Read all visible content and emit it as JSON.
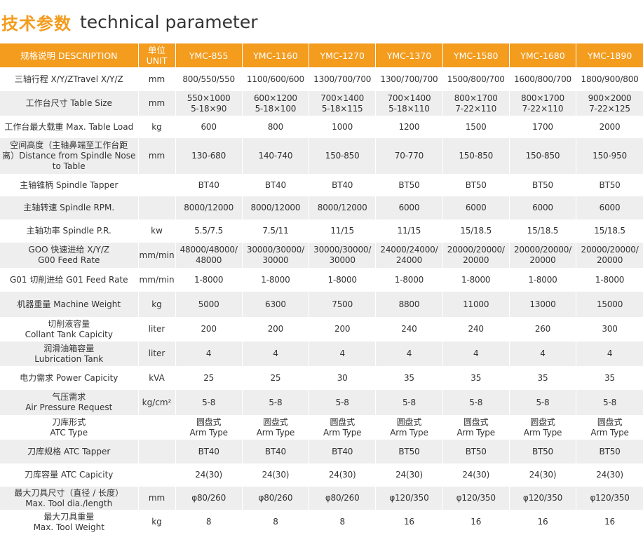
{
  "title": {
    "zh": "技术参数",
    "en": "technical parameter"
  },
  "header": {
    "description": "规格说明 DESCRIPTION",
    "unit": "单位\nUNIT",
    "models": [
      "YMC-855",
      "YMC-1160",
      "YMC-1270",
      "YMC-1370",
      "YMC-1580",
      "YMC-1680",
      "YMC-1890"
    ]
  },
  "rows": [
    {
      "label": "三轴行程 X/Y/ZTravel X/Y/Z",
      "unit": "mm",
      "values": [
        "800/550/550",
        "1100/600/600",
        "1300/700/700",
        "1300/700/700",
        "1500/800/700",
        "1600/800/700",
        "1800/900/800"
      ]
    },
    {
      "label": "工作台尺寸 Table Size",
      "unit": "mm",
      "values": [
        "550×1000\n5-18×90",
        "600×1200\n5-18×100",
        "700×1400\n5-18×115",
        "700×1400\n5-18×110",
        "800×1700\n7-22×110",
        "800×1700\n7-22×110",
        "900×2000\n7-22×125"
      ]
    },
    {
      "label": "工作台最大载重 Max. Table Load",
      "unit": "kg",
      "values": [
        "600",
        "800",
        "1000",
        "1200",
        "1500",
        "1700",
        "2000"
      ]
    },
    {
      "label": "空间高度（主轴鼻端至工作台距\n离）Distance from Spindle Nose\nto Table",
      "unit": "mm",
      "values": [
        "130-680",
        "140-740",
        "150-850",
        "70-770",
        "150-850",
        "150-850",
        "150-950"
      ]
    },
    {
      "label": "主轴锥柄 Spindle Tapper",
      "unit": "",
      "values": [
        "BT40",
        "BT40",
        "BT40",
        "BT50",
        "BT50",
        "BT50",
        "BT50"
      ]
    },
    {
      "label": "主轴转速 Spindle RPM.",
      "unit": "",
      "values": [
        "8000/12000",
        "8000/12000",
        "8000/12000",
        "6000",
        "6000",
        "6000",
        "6000"
      ]
    },
    {
      "label": "主轴功率 Spindle P.R.",
      "unit": "kw",
      "values": [
        "5.5/7.5",
        "7.5/11",
        "11/15",
        "11/15",
        "15/18.5",
        "15/18.5",
        "15/18.5"
      ]
    },
    {
      "label": "GOO 快速进给 X/Y/Z\nG00 Feed Rate",
      "unit": "mm/min",
      "values": [
        "48000/48000/\n48000",
        "30000/30000/\n30000",
        "30000/30000/\n30000",
        "24000/24000/\n24000",
        "20000/20000/\n20000",
        "20000/20000/\n20000",
        "20000/20000/\n20000"
      ]
    },
    {
      "label": "G01 切削进给 G01 Feed Rate",
      "unit": "mm/min",
      "values": [
        "1-8000",
        "1-8000",
        "1-8000",
        "1-8000",
        "1-8000",
        "1-8000",
        "1-8000"
      ]
    },
    {
      "label": "机器重量 Machine Weight",
      "unit": "kg",
      "values": [
        "5000",
        "6300",
        "7500",
        "8800",
        "11000",
        "13000",
        "15000"
      ]
    },
    {
      "label": "切削液容量\nCollant Tank Capicity",
      "unit": "liter",
      "values": [
        "200",
        "200",
        "200",
        "240",
        "240",
        "260",
        "300"
      ]
    },
    {
      "label": "润滑油箱容量\nLubrication Tank",
      "unit": "liter",
      "values": [
        "4",
        "4",
        "4",
        "4",
        "4",
        "4",
        "4"
      ]
    },
    {
      "label": "电力需求 Power Capicity",
      "unit": "kVA",
      "values": [
        "25",
        "25",
        "30",
        "35",
        "35",
        "35",
        "35"
      ]
    },
    {
      "label": "气压需求\nAir Pressure Request",
      "unit": "kg/cm²",
      "values": [
        "5-8",
        "5-8",
        "5-8",
        "5-8",
        "5-8",
        "5-8",
        "5-8"
      ]
    },
    {
      "label": "刀库形式\nATC Type",
      "unit": "",
      "values": [
        "圆盘式\nArm Type",
        "圆盘式\nArm Type",
        "圆盘式\nArm Type",
        "圆盘式\nArm Type",
        "圆盘式\nArm Type",
        "圆盘式\nArm Type",
        "圆盘式\nArm Type"
      ]
    },
    {
      "label": "刀库规格 ATC Tapper",
      "unit": "",
      "values": [
        "BT40",
        "BT40",
        "BT40",
        "BT50",
        "BT50",
        "BT50",
        "BT50"
      ]
    },
    {
      "label": "刀库容量 ATC Capicity",
      "unit": "",
      "values": [
        "24(30)",
        "24(30)",
        "24(30)",
        "24(30)",
        "24(30)",
        "24(30)",
        "24(30)"
      ]
    },
    {
      "label": "最大刀具尺寸（直径 / 长度）\nMax. Tool dia./length",
      "unit": "mm",
      "values": [
        "φ80/260",
        "φ80/260",
        "φ80/260",
        "φ120/350",
        "φ120/350",
        "φ120/350",
        "φ120/350"
      ]
    },
    {
      "label": "最大刀具重量\nMax. Tool Weight",
      "unit": "kg",
      "values": [
        "8",
        "8",
        "8",
        "16",
        "16",
        "16",
        "16"
      ]
    }
  ]
}
